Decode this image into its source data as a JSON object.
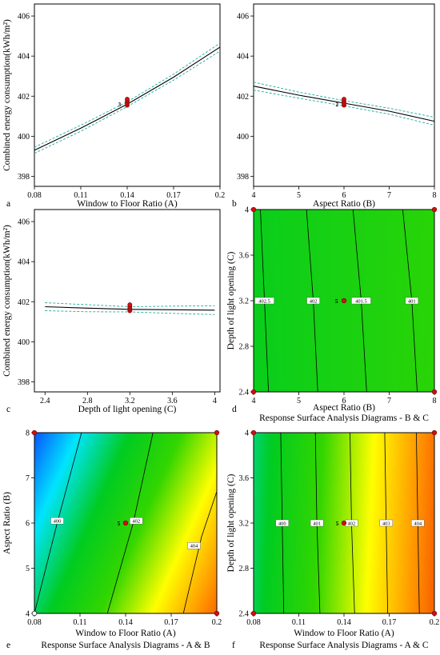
{
  "figure": {
    "colors": {
      "mean_line": "#000000",
      "ci_line": "#1fa9a0",
      "design_point": "#d01010",
      "frame": "#000000",
      "colormap": [
        "#0a3cff",
        "#00e5ff",
        "#00cc22",
        "#33d600",
        "#ffff00",
        "#ff8800",
        "#e81000"
      ]
    }
  },
  "chart_data": [
    {
      "id": "a",
      "type": "line",
      "panel_letter": "a",
      "xlabel": "Window to Floor Ratio (A)",
      "ylabel": "Combined energy consumption(kWh/m²)",
      "xlim": [
        0.08,
        0.2
      ],
      "ylim": [
        397.5,
        406.6
      ],
      "x_ticks": [
        0.08,
        0.11,
        0.14,
        0.17,
        0.2
      ],
      "x_tick_labels": [
        "0.08",
        "0.11",
        "0.14",
        "0.17",
        "0.2"
      ],
      "y_ticks": [
        398,
        400,
        402,
        404,
        406
      ],
      "y_tick_labels": [
        "398",
        "400",
        "402",
        "404",
        "406"
      ],
      "series": [
        {
          "role": "mean",
          "x": [
            0.08,
            0.11,
            0.14,
            0.17,
            0.2
          ],
          "y": [
            399.3,
            400.4,
            401.6,
            402.95,
            404.45
          ]
        },
        {
          "role": "ci-upper",
          "x": [
            0.08,
            0.11,
            0.14,
            0.17,
            0.2
          ],
          "y": [
            399.45,
            400.55,
            401.72,
            403.1,
            404.65
          ]
        },
        {
          "role": "ci-lower",
          "x": [
            0.08,
            0.11,
            0.14,
            0.17,
            0.2
          ],
          "y": [
            399.15,
            400.25,
            401.48,
            402.8,
            404.25
          ]
        }
      ],
      "points": [
        {
          "x": 0.14,
          "y": 401.55
        },
        {
          "x": 0.14,
          "y": 401.65
        },
        {
          "x": 0.14,
          "y": 401.75
        },
        {
          "x": 0.14,
          "y": 401.85
        }
      ],
      "point_label": {
        "text": "3",
        "x": 0.1375,
        "y": 401.62
      }
    },
    {
      "id": "b",
      "type": "line",
      "panel_letter": "b",
      "xlabel": "Aspect Ratio (B)",
      "ylabel": "",
      "xlim": [
        4,
        8
      ],
      "ylim": [
        397.5,
        406.6
      ],
      "x_ticks": [
        4,
        5,
        6,
        7,
        8
      ],
      "x_tick_labels": [
        "4",
        "5",
        "6",
        "7",
        "8"
      ],
      "y_ticks": [
        398,
        400,
        402,
        404,
        406
      ],
      "y_tick_labels": [
        "398",
        "400",
        "402",
        "404",
        "406"
      ],
      "series": [
        {
          "role": "mean",
          "x": [
            4,
            5,
            6,
            7,
            8
          ],
          "y": [
            402.5,
            402.05,
            401.65,
            401.25,
            400.75
          ]
        },
        {
          "role": "ci-upper",
          "x": [
            4,
            5,
            6,
            7,
            8
          ],
          "y": [
            402.7,
            402.2,
            401.78,
            401.4,
            400.95
          ]
        },
        {
          "role": "ci-lower",
          "x": [
            4,
            5,
            6,
            7,
            8
          ],
          "y": [
            402.3,
            401.9,
            401.52,
            401.1,
            400.55
          ]
        }
      ],
      "points": [
        {
          "x": 6,
          "y": 401.55
        },
        {
          "x": 6,
          "y": 401.65
        },
        {
          "x": 6,
          "y": 401.75
        },
        {
          "x": 6,
          "y": 401.85
        }
      ],
      "point_label": {
        "text": "2",
        "x": 5.93,
        "y": 401.62
      }
    },
    {
      "id": "c",
      "type": "line",
      "panel_letter": "c",
      "xlabel": "Depth of light opening (C)",
      "ylabel": "Combined energy consumption(kWh/m²)",
      "xlim": [
        2.3,
        4.05
      ],
      "ylim": [
        397.5,
        406.6
      ],
      "x_ticks": [
        2.4,
        2.8,
        3.2,
        3.6,
        4
      ],
      "x_tick_labels": [
        "2.4",
        "2.8",
        "3.2",
        "3.6",
        "4"
      ],
      "y_ticks": [
        398,
        400,
        402,
        404,
        406
      ],
      "y_tick_labels": [
        "398",
        "400",
        "402",
        "404",
        "406"
      ],
      "series": [
        {
          "role": "mean",
          "x": [
            2.4,
            2.8,
            3.2,
            3.6,
            4
          ],
          "y": [
            401.75,
            401.68,
            401.62,
            401.6,
            401.58
          ]
        },
        {
          "role": "ci-upper",
          "x": [
            2.4,
            2.8,
            3.2,
            3.6,
            4
          ],
          "y": [
            401.95,
            401.85,
            401.75,
            401.78,
            401.8
          ]
        },
        {
          "role": "ci-lower",
          "x": [
            2.4,
            2.8,
            3.2,
            3.6,
            4
          ],
          "y": [
            401.55,
            401.5,
            401.49,
            401.42,
            401.36
          ]
        }
      ],
      "points": [
        {
          "x": 3.2,
          "y": 401.55
        },
        {
          "x": 3.2,
          "y": 401.65
        },
        {
          "x": 3.2,
          "y": 401.75
        },
        {
          "x": 3.2,
          "y": 401.85
        }
      ],
      "point_label": {
        "text": "",
        "x": 3.2,
        "y": 401.6
      }
    },
    {
      "id": "d",
      "type": "heatmap",
      "panel_letter": "d",
      "caption": "Response Surface Analysis Diagrams - B & C",
      "xlabel": "Aspect Ratio (B)",
      "ylabel": "Depth of light opening (C)",
      "xlim": [
        4,
        8
      ],
      "ylim": [
        2.4,
        4
      ],
      "x_ticks": [
        4,
        5,
        6,
        7,
        8
      ],
      "x_tick_labels": [
        "4",
        "5",
        "6",
        "7",
        "8"
      ],
      "y_ticks": [
        2.4,
        2.8,
        3.2,
        3.6,
        4
      ],
      "y_tick_labels": [
        "2.4",
        "2.8",
        "3.2",
        "3.6",
        "4"
      ],
      "surface": {
        "z_min": 398.2,
        "z_max": 405.3,
        "wa": 34.583,
        "ca": 0.08,
        "wb": -0.46,
        "cb": 6,
        "wc": -0.12,
        "cc": 3.2,
        "k": 399.32
      },
      "contours": [
        {
          "level": 402.5,
          "label": "402.5",
          "pts": [
            [
              4.33,
              2.4
            ],
            [
              4.24,
              3.2
            ],
            [
              4.15,
              4
            ]
          ],
          "label_at": [
            4.24,
            3.2
          ]
        },
        {
          "level": 402,
          "label": "402",
          "pts": [
            [
              5.42,
              2.4
            ],
            [
              5.32,
              3.2
            ],
            [
              5.17,
              4
            ]
          ],
          "label_at": [
            5.32,
            3.2
          ]
        },
        {
          "level": 401.5,
          "label": "401.5",
          "pts": [
            [
              6.5,
              2.4
            ],
            [
              6.38,
              3.2
            ],
            [
              6.2,
              4
            ]
          ],
          "label_at": [
            6.38,
            3.2
          ]
        },
        {
          "level": 401,
          "label": "401",
          "pts": [
            [
              7.62,
              2.4
            ],
            [
              7.5,
              3.2
            ],
            [
              7.3,
              4
            ]
          ],
          "label_at": [
            7.5,
            3.2
          ]
        }
      ],
      "points": [
        {
          "x": 4,
          "y": 2.4
        },
        {
          "x": 8,
          "y": 2.4
        },
        {
          "x": 4,
          "y": 4
        },
        {
          "x": 8,
          "y": 4
        },
        {
          "x": 6,
          "y": 3.2
        }
      ],
      "point_label": {
        "text": "5",
        "x": 5.92,
        "y": 3.2
      }
    },
    {
      "id": "e",
      "type": "heatmap",
      "panel_letter": "e",
      "caption": "Response Surface Analysis Diagrams - A & B",
      "xlabel": "Window to Floor Ratio (A)",
      "ylabel": "Aspect Ratio (B)",
      "xlim": [
        0.08,
        0.2
      ],
      "ylim": [
        4,
        8
      ],
      "x_ticks": [
        0.08,
        0.11,
        0.14,
        0.17,
        0.2
      ],
      "x_tick_labels": [
        "0.08",
        "0.11",
        "0.14",
        "0.17",
        "0.2"
      ],
      "y_ticks": [
        4,
        5,
        6,
        7,
        8
      ],
      "y_tick_labels": [
        "4",
        "5",
        "6",
        "7",
        "8"
      ],
      "surface": {
        "z_min": 398.2,
        "z_max": 405.3,
        "wa": 34.583,
        "ca": 0.08,
        "wb": -0.46,
        "cb": 6,
        "wc": 0,
        "cc": 3.2,
        "k": 399.32
      },
      "contours": [
        {
          "level": 400,
          "label": "400",
          "pts": [
            [
              0.08,
              4.0
            ],
            [
              0.095,
              6.0
            ],
            [
              0.111,
              8.0
            ]
          ],
          "label_at": [
            0.095,
            6.05
          ]
        },
        {
          "level": 402,
          "label": "402",
          "pts": [
            [
              0.128,
              4.0
            ],
            [
              0.145,
              6.0
            ],
            [
              0.158,
              8.0
            ]
          ],
          "label_at": [
            0.147,
            6.05
          ]
        },
        {
          "level": 404,
          "label": "404",
          "pts": [
            [
              0.178,
              4.0
            ],
            [
              0.19,
              5.7
            ],
            [
              0.2,
              6.7
            ]
          ],
          "label_at": [
            0.185,
            5.5
          ]
        }
      ],
      "points": [
        {
          "x": 0.08,
          "y": 4
        },
        {
          "x": 0.2,
          "y": 4
        },
        {
          "x": 0.08,
          "y": 8
        },
        {
          "x": 0.2,
          "y": 8
        },
        {
          "x": 0.14,
          "y": 6
        }
      ],
      "point_label": {
        "text": "5",
        "x": 0.138,
        "y": 6.0
      }
    },
    {
      "id": "f",
      "type": "heatmap",
      "panel_letter": "f",
      "caption": "Response Surface Analysis Diagrams - A & C",
      "xlabel": "Window to Floor Ratio (A)",
      "ylabel": "Depth of light opening (C)",
      "xlim": [
        0.08,
        0.2
      ],
      "ylim": [
        2.4,
        4
      ],
      "x_ticks": [
        0.08,
        0.11,
        0.14,
        0.17,
        0.2
      ],
      "x_tick_labels": [
        "0.08",
        "0.11",
        "0.14",
        "0.17",
        "0.2"
      ],
      "y_ticks": [
        2.4,
        2.8,
        3.2,
        3.6,
        4
      ],
      "y_tick_labels": [
        "2.4",
        "2.8",
        "3.2",
        "3.6",
        "4"
      ],
      "surface": {
        "z_min": 398.2,
        "z_max": 405.3,
        "wa": 34.583,
        "ca": 0.08,
        "wb": 0,
        "cb": 6,
        "wc": -0.12,
        "cc": 3.2,
        "k": 400.25
      },
      "contours": [
        {
          "level": 400,
          "label": "400",
          "pts": [
            [
              0.1,
              2.4
            ],
            [
              0.099,
              3.2
            ],
            [
              0.098,
              4
            ]
          ],
          "label_at": [
            0.099,
            3.2
          ]
        },
        {
          "level": 401,
          "label": "401",
          "pts": [
            [
              0.124,
              2.4
            ],
            [
              0.122,
              3.2
            ],
            [
              0.121,
              4
            ]
          ],
          "label_at": [
            0.122,
            3.2
          ]
        },
        {
          "level": 402,
          "label": "402",
          "pts": [
            [
              0.147,
              2.4
            ],
            [
              0.145,
              3.2
            ],
            [
              0.144,
              4
            ]
          ],
          "label_at": [
            0.145,
            3.2
          ]
        },
        {
          "level": 403,
          "label": "403",
          "pts": [
            [
              0.169,
              2.4
            ],
            [
              0.168,
              3.2
            ],
            [
              0.167,
              4
            ]
          ],
          "label_at": [
            0.168,
            3.2
          ]
        },
        {
          "level": 404,
          "label": "404",
          "pts": [
            [
              0.19,
              2.4
            ],
            [
              0.189,
              3.2
            ],
            [
              0.188,
              4
            ]
          ],
          "label_at": [
            0.189,
            3.2
          ]
        }
      ],
      "points": [
        {
          "x": 0.08,
          "y": 2.4
        },
        {
          "x": 0.2,
          "y": 2.4
        },
        {
          "x": 0.08,
          "y": 4
        },
        {
          "x": 0.2,
          "y": 4
        },
        {
          "x": 0.14,
          "y": 3.2
        }
      ],
      "point_label": {
        "text": "5",
        "x": 0.138,
        "y": 3.2
      }
    }
  ]
}
